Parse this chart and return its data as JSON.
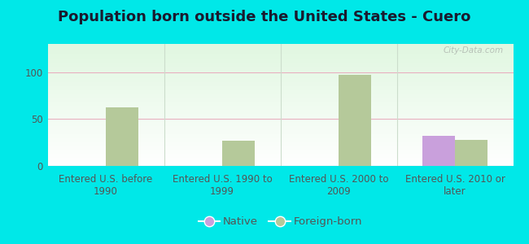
{
  "title": "Population born outside the United States - Cuero",
  "background_outer": "#00e8e8",
  "background_inner": "#dff2df",
  "categories": [
    "Entered U.S. before\n1990",
    "Entered U.S. 1990 to\n1999",
    "Entered U.S. 2000 to\n2009",
    "Entered U.S. 2010 or\nlater"
  ],
  "native_values": [
    0,
    0,
    0,
    32
  ],
  "foreign_values": [
    62,
    27,
    97,
    28
  ],
  "native_color": "#c9a0dc",
  "foreign_color": "#b5c99a",
  "ylim": [
    0,
    130
  ],
  "yticks": [
    0,
    50,
    100
  ],
  "bar_width": 0.28,
  "legend_native": "Native",
  "legend_foreign": "Foreign-born",
  "watermark": "City-Data.com",
  "title_fontsize": 13,
  "tick_fontsize": 8.5,
  "legend_fontsize": 9.5,
  "grid_color": "#e8b0c0",
  "separator_color": "#ccddcc"
}
